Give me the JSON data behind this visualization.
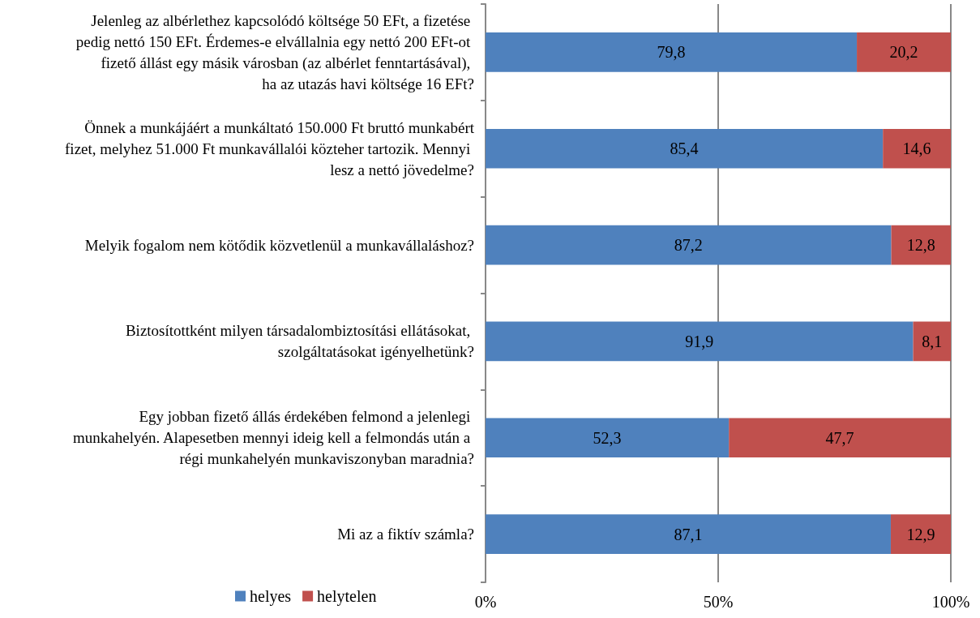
{
  "chart_data": {
    "type": "bar",
    "orientation": "horizontal",
    "stacked": true,
    "categories": [
      "Jelenleg az albérlethez kapcsolódó költsége 50 EFt, a fizetése pedig nettó 150 EFt. Érdemes-e elvállalnia egy nettó 200 EFt-ot fizető állást egy másik városban (az albérlet fenntartásával), ha az utazás havi költsége 16 EFt?",
      "Önnek a munkájáért a munkáltató 150.000 Ft bruttó munkabért fizet, melyhez 51.000 Ft munkavállalói közteher tartozik. Mennyi lesz a nettó jövedelme?",
      "Melyik fogalom nem kötődik közvetlenül a munkavállaláshoz?",
      "Biztosítottként milyen társadalombiztosítási ellátásokat, szolgáltatásokat igényelhetünk?",
      "Egy jobban fizető állás érdekében felmond a jelenlegi munkahelyén. Alapesetben mennyi ideig kell a felmondás után a régi munkahelyén munkaviszonyban maradnia?",
      "Mi az a fiktív számla?"
    ],
    "series": [
      {
        "name": "helyes",
        "color": "#4f81bd",
        "values": [
          79.8,
          85.4,
          87.2,
          91.9,
          52.3,
          87.1
        ],
        "value_labels": [
          "79,8",
          "85,4",
          "87,2",
          "91,9",
          "52,3",
          "87,1"
        ]
      },
      {
        "name": "helytelen",
        "color": "#c0504d",
        "values": [
          20.2,
          14.6,
          12.8,
          8.1,
          47.7,
          12.9
        ],
        "value_labels": [
          "20,2",
          "14,6",
          "12,8",
          "8,1",
          "47,7",
          "12,9"
        ]
      }
    ],
    "xlim": [
      0,
      100
    ],
    "xticks": [
      {
        "value": 0,
        "label": "0%"
      },
      {
        "value": 50,
        "label": "50%"
      },
      {
        "value": 100,
        "label": "100%"
      }
    ],
    "grid": "x",
    "legend": "bottom left"
  }
}
